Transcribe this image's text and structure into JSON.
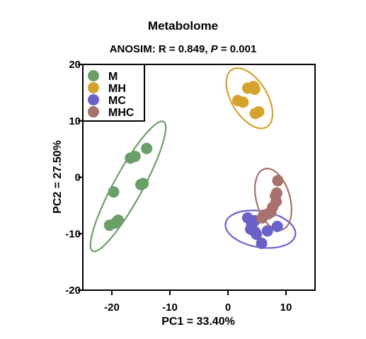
{
  "chart_data": {
    "type": "scatter",
    "title": "Metabolome",
    "subtitle": {
      "prefix": "ANOSIM: R = 0.849, ",
      "p_symbol": "P",
      "suffix": " = 0.001"
    },
    "xlabel": "PC1 =  33.40%",
    "ylabel": "PC2 =  27.50%",
    "xlim": [
      -25,
      15
    ],
    "ylim": [
      -20,
      20
    ],
    "xticks": [
      -20,
      -10,
      0,
      10
    ],
    "yticks": [
      -20,
      -10,
      0,
      10,
      20
    ],
    "legend_position": "top-left",
    "grid": false,
    "series": [
      {
        "name": "M",
        "color": "#6a9f68",
        "points": [
          [
            -14,
            5.1
          ],
          [
            -16,
            3.7
          ],
          [
            -16.8,
            3.4
          ],
          [
            -14.6,
            -1.1
          ],
          [
            -15,
            -1.3
          ],
          [
            -19.7,
            -2.6
          ],
          [
            -18.9,
            -7.6
          ],
          [
            -19.4,
            -8.1
          ],
          [
            -20.4,
            -8.5
          ]
        ],
        "ellipse": {
          "cx": -17.2,
          "cy": -1.6,
          "rx": 13,
          "ry": 2.5,
          "angle": 62
        }
      },
      {
        "name": "MH",
        "color": "#d6a22e",
        "points": [
          [
            3.4,
            15.8
          ],
          [
            4.4,
            16.1
          ],
          [
            4.6,
            15.6
          ],
          [
            1.7,
            13.6
          ],
          [
            2.6,
            13.3
          ],
          [
            5.3,
            11.6
          ],
          [
            4.7,
            11.3
          ]
        ],
        "ellipse": {
          "cx": 3.7,
          "cy": 14,
          "rx": 5.9,
          "ry": 3.1,
          "angle": -60
        }
      },
      {
        "name": "MC",
        "color": "#6a62c9",
        "points": [
          [
            3.4,
            -7.2
          ],
          [
            4.6,
            -7.7
          ],
          [
            4.1,
            -8.4
          ],
          [
            8.5,
            -8.7
          ],
          [
            3.9,
            -9.2
          ],
          [
            4.7,
            -9.7
          ],
          [
            6.8,
            -9.5
          ],
          [
            4.9,
            -10.1
          ],
          [
            5.8,
            -11.7
          ]
        ],
        "ellipse": {
          "cx": 5.6,
          "cy": -9.2,
          "rx": 6.1,
          "ry": 3.2,
          "angle": -10
        }
      },
      {
        "name": "MHC",
        "color": "#a8716b",
        "points": [
          [
            8.6,
            -0.6
          ],
          [
            8.4,
            -2.8
          ],
          [
            8.2,
            -3.3
          ],
          [
            8.3,
            -4.3
          ],
          [
            7.7,
            -5.3
          ],
          [
            7.4,
            -6.2
          ],
          [
            6.9,
            -6.5
          ],
          [
            6.2,
            -6.7
          ],
          [
            5.9,
            -7.2
          ]
        ],
        "ellipse": {
          "cx": 7.8,
          "cy": -3.9,
          "rx": 5.6,
          "ry": 2.9,
          "angle": -75
        }
      }
    ]
  }
}
